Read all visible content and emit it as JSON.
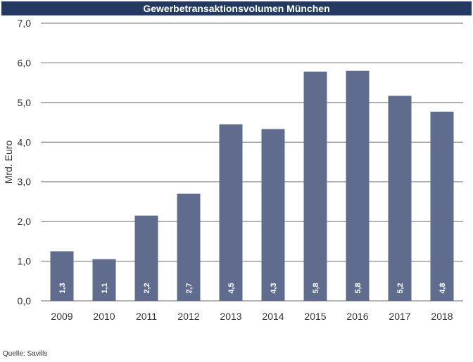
{
  "chart_data": {
    "type": "bar",
    "title": "Gewerbetransaktionsvolumen München",
    "ylabel": "Mrd. Euro",
    "xlabel": "",
    "categories": [
      "2009",
      "2010",
      "2011",
      "2012",
      "2013",
      "2014",
      "2015",
      "2016",
      "2017",
      "2018"
    ],
    "values": [
      1.25,
      1.05,
      2.15,
      2.7,
      4.45,
      4.33,
      5.78,
      5.8,
      5.17,
      4.77
    ],
    "data_labels": [
      "1,3",
      "1,1",
      "2,2",
      "2,7",
      "4,5",
      "4,3",
      "5,8",
      "5,8",
      "5,2",
      "4,8"
    ],
    "ylim": [
      0,
      7
    ],
    "yticks": [
      0,
      1,
      2,
      3,
      4,
      5,
      6,
      7
    ],
    "ytick_labels": [
      "0,0",
      "1,0",
      "2,0",
      "3,0",
      "4,0",
      "5,0",
      "6,0",
      "7,0"
    ],
    "grid": true,
    "bar_color": "#5f6c8e",
    "title_bar_color": "#243a63"
  },
  "source": "Quelle: Savills"
}
